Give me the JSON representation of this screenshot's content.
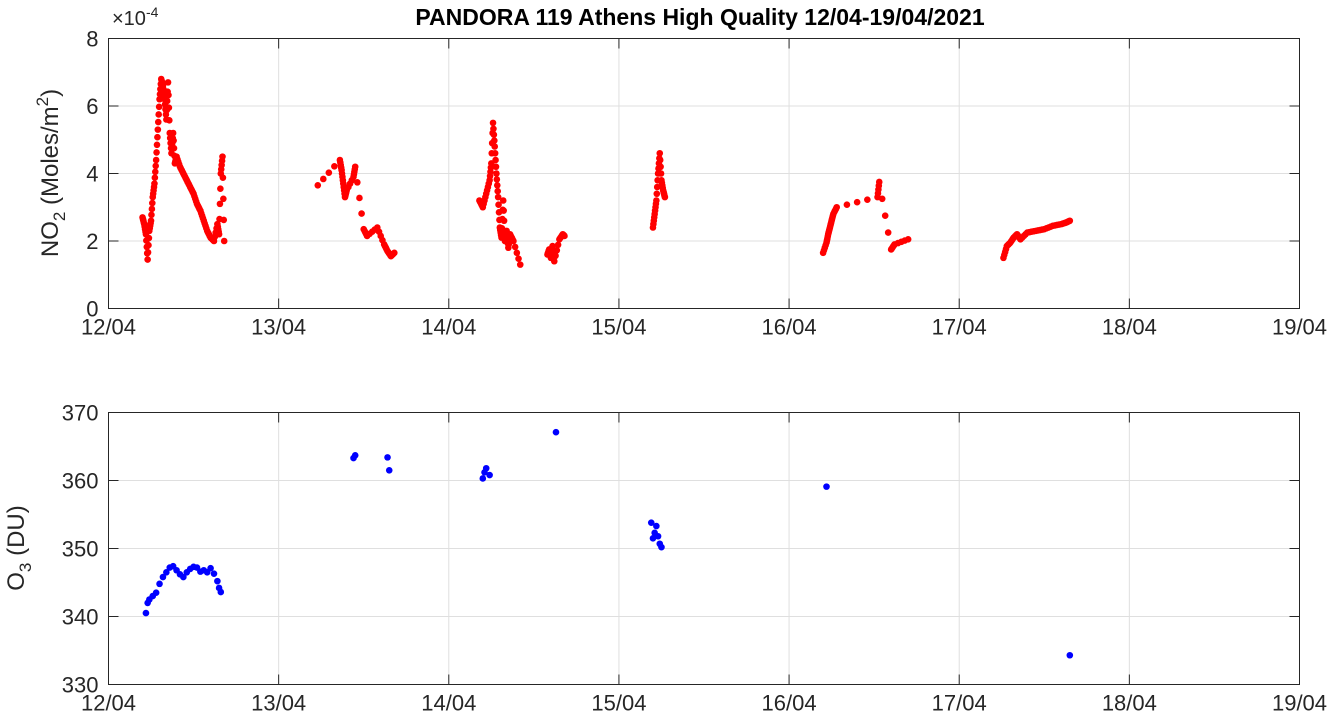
{
  "figure_title": "PANDORA 119 Athens High Quality 12/04-19/04/2021",
  "chart_data": [
    {
      "type": "scatter",
      "x_tick_labels": [
        "12/04",
        "13/04",
        "14/04",
        "15/04",
        "16/04",
        "17/04",
        "18/04",
        "19/04"
      ],
      "xlim": [
        12,
        19
      ],
      "ylim": [
        0,
        8
      ],
      "y_tick_labels": [
        "0",
        "2",
        "4",
        "6",
        "8"
      ],
      "y_multiplier": "×10",
      "y_multiplier_exponent": "-4",
      "ylabel_main": "NO",
      "ylabel_sub": "2",
      "ylabel_unit": " (Moles/m",
      "ylabel_sup": "2",
      "ylabel_close": ")",
      "grid": true,
      "marker_color": "#ff0000",
      "segments": [
        [
          [
            12.2,
            2.7
          ],
          [
            12.21,
            2.5
          ],
          [
            12.22,
            2.2
          ],
          [
            12.23,
            1.45
          ],
          [
            12.24,
            2.3
          ],
          [
            12.25,
            2.6
          ],
          [
            12.26,
            3.3
          ],
          [
            12.27,
            3.7
          ],
          [
            12.28,
            4.4
          ],
          [
            12.29,
            5.3
          ],
          [
            12.3,
            6.2
          ],
          [
            12.31,
            6.8
          ],
          [
            12.32,
            6.6
          ],
          [
            12.33,
            6.2
          ],
          [
            12.34,
            5.6
          ],
          [
            12.35,
            6.7
          ],
          [
            12.36,
            5.2
          ],
          [
            12.37,
            4.6
          ],
          [
            12.38,
            5.2
          ],
          [
            12.39,
            4.3
          ],
          [
            12.4,
            4.5
          ],
          [
            12.42,
            4.2
          ],
          [
            12.44,
            4.0
          ],
          [
            12.46,
            3.8
          ],
          [
            12.48,
            3.6
          ],
          [
            12.5,
            3.4
          ],
          [
            12.52,
            3.1
          ],
          [
            12.54,
            2.9
          ],
          [
            12.56,
            2.6
          ],
          [
            12.58,
            2.3
          ],
          [
            12.6,
            2.1
          ],
          [
            12.62,
            2.0
          ],
          [
            12.64,
            2.5
          ],
          [
            12.65,
            2.2
          ],
          [
            12.66,
            4.0
          ],
          [
            12.67,
            4.5
          ],
          [
            12.68,
            2.0
          ]
        ],
        [
          [
            13.23,
            3.65
          ],
          [
            13.36,
            4.4
          ],
          [
            13.37,
            4.1
          ],
          [
            13.38,
            3.7
          ],
          [
            13.39,
            3.3
          ],
          [
            13.4,
            3.5
          ],
          [
            13.44,
            3.9
          ],
          [
            13.45,
            4.2
          ],
          [
            13.5,
            2.35
          ],
          [
            13.52,
            2.15
          ],
          [
            13.58,
            2.4
          ],
          [
            13.62,
            1.9
          ],
          [
            13.64,
            1.7
          ],
          [
            13.66,
            1.55
          ],
          [
            13.68,
            1.65
          ]
        ],
        [
          [
            14.18,
            3.2
          ],
          [
            14.2,
            3.0
          ],
          [
            14.22,
            3.4
          ],
          [
            14.24,
            3.8
          ],
          [
            14.25,
            4.3
          ],
          [
            14.26,
            5.5
          ],
          [
            14.27,
            4.8
          ],
          [
            14.28,
            4.0
          ],
          [
            14.29,
            3.3
          ],
          [
            14.3,
            2.4
          ],
          [
            14.31,
            2.1
          ],
          [
            14.32,
            3.2
          ],
          [
            14.33,
            2.0
          ],
          [
            14.34,
            2.3
          ],
          [
            14.35,
            1.8
          ],
          [
            14.36,
            2.2
          ],
          [
            14.38,
            2.0
          ],
          [
            14.42,
            1.3
          ]
        ],
        [
          [
            14.58,
            1.6
          ],
          [
            14.59,
            1.75
          ],
          [
            14.6,
            1.5
          ],
          [
            14.61,
            1.85
          ],
          [
            14.62,
            1.4
          ],
          [
            14.65,
            2.05
          ],
          [
            14.67,
            2.2
          ],
          [
            14.68,
            2.15
          ]
        ],
        [
          [
            15.2,
            2.4
          ],
          [
            15.21,
            2.8
          ],
          [
            15.22,
            3.2
          ],
          [
            15.23,
            4.0
          ],
          [
            15.24,
            4.6
          ],
          [
            15.25,
            3.8
          ],
          [
            15.26,
            3.5
          ],
          [
            15.27,
            3.3
          ]
        ],
        [
          [
            16.2,
            1.65
          ],
          [
            16.22,
            1.95
          ],
          [
            16.23,
            2.2
          ],
          [
            16.24,
            2.4
          ],
          [
            16.25,
            2.6
          ],
          [
            16.26,
            2.8
          ],
          [
            16.28,
            3.0
          ],
          [
            16.52,
            3.3
          ],
          [
            16.53,
            3.75
          ],
          [
            16.6,
            1.75
          ],
          [
            16.62,
            1.9
          ],
          [
            16.7,
            2.05
          ]
        ],
        [
          [
            17.26,
            1.5
          ],
          [
            17.28,
            1.85
          ],
          [
            17.3,
            1.95
          ],
          [
            17.32,
            2.1
          ],
          [
            17.34,
            2.2
          ],
          [
            17.36,
            2.05
          ],
          [
            17.4,
            2.25
          ],
          [
            17.45,
            2.3
          ],
          [
            17.5,
            2.35
          ],
          [
            17.55,
            2.45
          ],
          [
            17.6,
            2.5
          ],
          [
            17.63,
            2.55
          ],
          [
            17.65,
            2.6
          ]
        ]
      ]
    },
    {
      "type": "scatter",
      "x_tick_labels": [
        "12/04",
        "13/04",
        "14/04",
        "15/04",
        "16/04",
        "17/04",
        "18/04",
        "19/04"
      ],
      "xlim": [
        12,
        19
      ],
      "ylim": [
        330,
        370
      ],
      "y_tick_labels": [
        "330",
        "340",
        "350",
        "360",
        "370"
      ],
      "ylabel_main": "O",
      "ylabel_sub": "3",
      "ylabel_unit": " (DU)",
      "grid": true,
      "marker_color": "#0000ff",
      "points": [
        [
          12.22,
          340.5
        ],
        [
          12.23,
          342.0
        ],
        [
          12.24,
          342.5
        ],
        [
          12.26,
          343.0
        ],
        [
          12.28,
          343.5
        ],
        [
          12.3,
          344.8
        ],
        [
          12.32,
          345.8
        ],
        [
          12.34,
          346.5
        ],
        [
          12.36,
          347.2
        ],
        [
          12.38,
          347.4
        ],
        [
          12.4,
          346.8
        ],
        [
          12.42,
          346.2
        ],
        [
          12.44,
          345.8
        ],
        [
          12.46,
          346.5
        ],
        [
          12.48,
          347.0
        ],
        [
          12.5,
          347.3
        ],
        [
          12.52,
          347.2
        ],
        [
          12.54,
          346.6
        ],
        [
          12.56,
          346.8
        ],
        [
          12.58,
          346.5
        ],
        [
          12.6,
          347.1
        ],
        [
          12.62,
          346.3
        ],
        [
          12.64,
          345.2
        ],
        [
          12.65,
          344.2
        ],
        [
          12.66,
          343.6
        ],
        [
          13.44,
          363.3
        ],
        [
          13.45,
          363.7
        ],
        [
          13.64,
          363.4
        ],
        [
          13.65,
          361.5
        ],
        [
          14.2,
          360.3
        ],
        [
          14.21,
          361.2
        ],
        [
          14.22,
          361.8
        ],
        [
          14.24,
          360.8
        ],
        [
          14.63,
          367.1
        ],
        [
          15.19,
          353.8
        ],
        [
          15.2,
          351.5
        ],
        [
          15.21,
          352.3
        ],
        [
          15.22,
          353.3
        ],
        [
          15.23,
          351.8
        ],
        [
          15.24,
          350.7
        ],
        [
          15.25,
          350.2
        ],
        [
          16.22,
          359.1
        ],
        [
          17.65,
          334.3
        ]
      ]
    }
  ]
}
